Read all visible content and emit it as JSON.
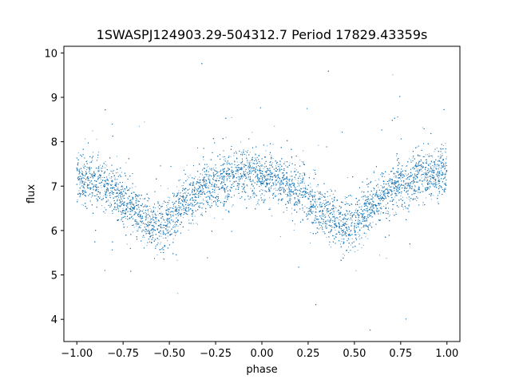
{
  "chart_data": {
    "type": "scatter",
    "title": "1SWASPJ124903.29-504312.7 Period 17829.43359s",
    "xlabel": "phase",
    "ylabel": "flux",
    "xlim": [
      -1.07,
      1.07
    ],
    "ylim": [
      3.5,
      10.15
    ],
    "xticks": [
      -1.0,
      -0.75,
      -0.5,
      -0.25,
      0.0,
      0.25,
      0.5,
      0.75,
      1.0
    ],
    "xtick_labels": [
      "−1.00",
      "−0.75",
      "−0.50",
      "−0.25",
      "0.00",
      "0.25",
      "0.50",
      "0.75",
      "1.00"
    ],
    "yticks": [
      4,
      5,
      6,
      7,
      8,
      9,
      10
    ],
    "ytick_labels": [
      "4",
      "5",
      "6",
      "7",
      "8",
      "9",
      "10"
    ],
    "grid": false,
    "legend": "none",
    "point_color": "#1f77b4",
    "series": [
      {
        "x": [
          -1.0,
          -0.9,
          -0.8,
          -0.7,
          -0.6,
          -0.55,
          -0.5,
          -0.4,
          -0.3,
          -0.2,
          -0.1,
          0.0,
          0.1,
          0.2,
          0.3,
          0.4,
          0.45,
          0.5,
          0.6,
          0.7,
          0.8,
          0.9,
          1.0
        ],
        "y": [
          7.2,
          7.1,
          6.9,
          6.5,
          6.2,
          6.1,
          6.2,
          6.7,
          7.0,
          7.15,
          7.3,
          7.25,
          7.1,
          6.9,
          6.5,
          6.2,
          6.1,
          6.2,
          6.6,
          6.95,
          7.15,
          7.25,
          7.3
        ]
      }
    ]
  }
}
